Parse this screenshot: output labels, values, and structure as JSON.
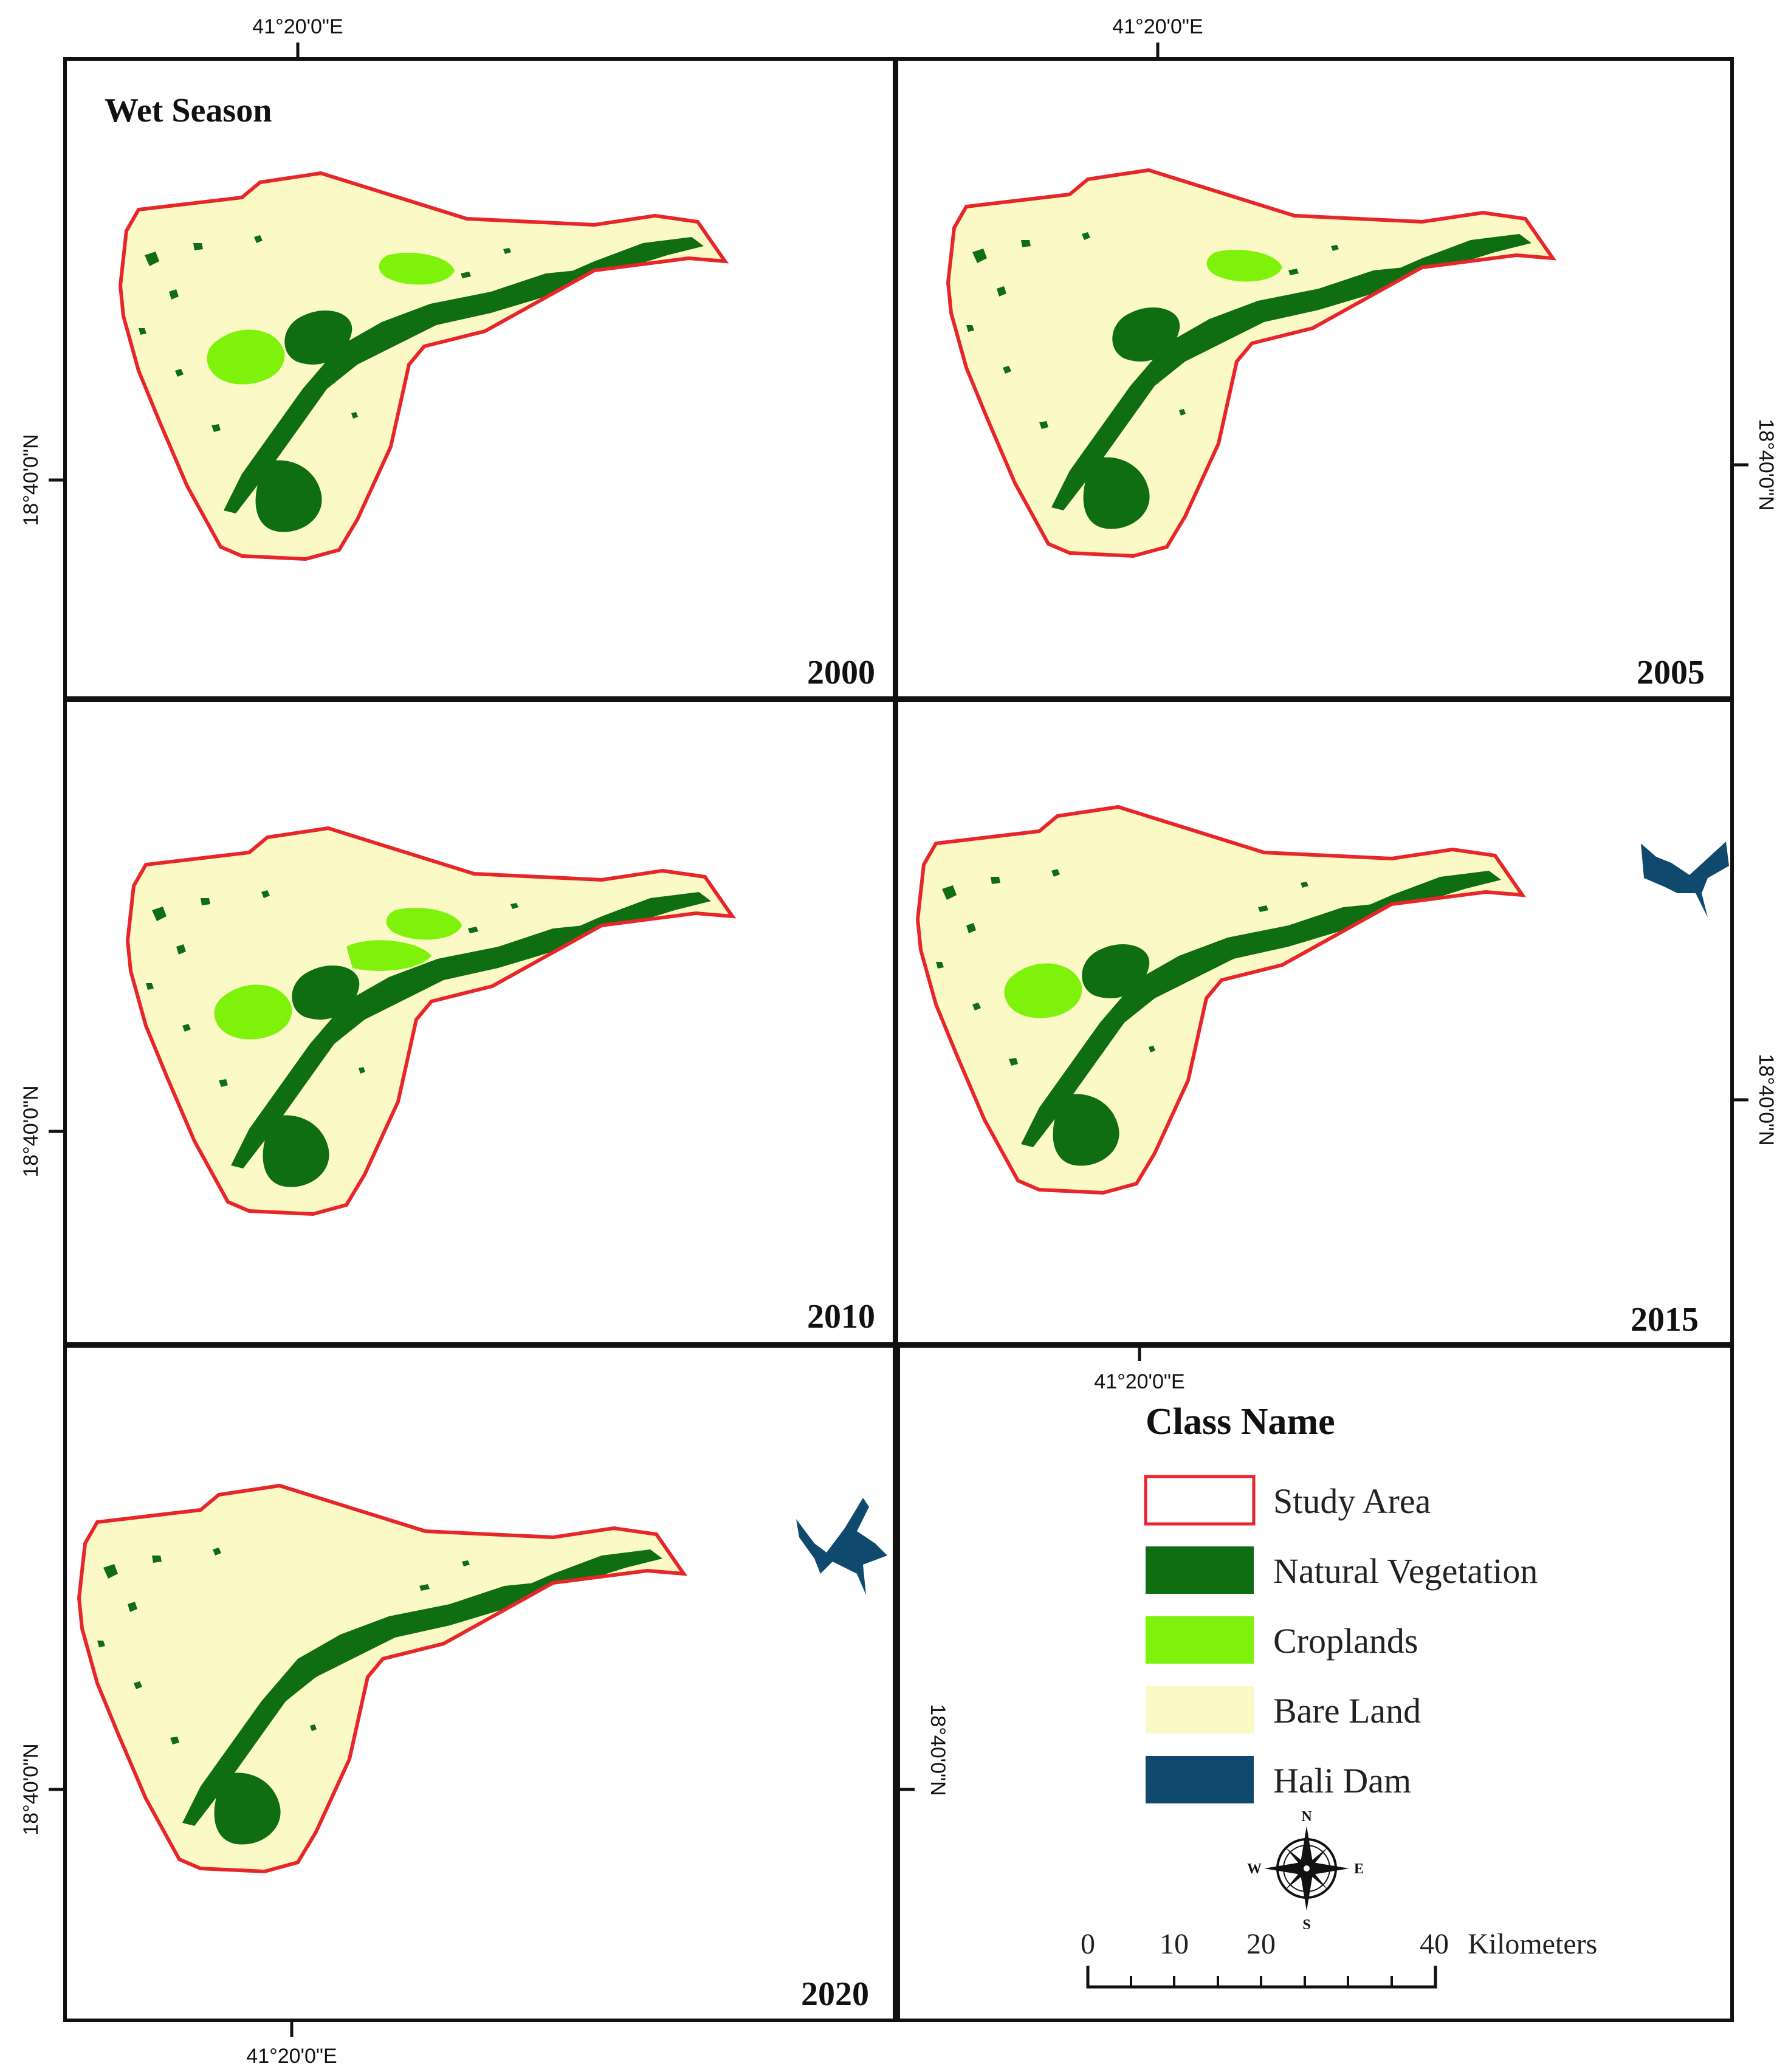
{
  "figure": {
    "season_label": "Wet Season"
  },
  "panels": [
    {
      "year": "2000",
      "lon_label": "41°20'0\"E",
      "lat_label": "18°40'0\"N",
      "dam_visible": false
    },
    {
      "year": "2005",
      "lon_label": "41°20'0\"E",
      "lat_label": "18°40'0\"N",
      "dam_visible": false
    },
    {
      "year": "2010",
      "lon_label": "",
      "lat_label": "18°40'0\"N",
      "dam_visible": false
    },
    {
      "year": "2015",
      "lon_label": "41°20'0\"E",
      "lat_label": "18°40'0\"N",
      "dam_visible": true
    },
    {
      "year": "2020",
      "lon_label": "41°20'0\"E",
      "lat_label": "18°40'0\"N",
      "dam_visible": true
    }
  ],
  "legend": {
    "title": "Class Name",
    "lat_label": "18°40'0\"N",
    "lon_label": "41°20'0\"E",
    "items": [
      {
        "label": "Study Area",
        "color": "#ffffff",
        "border": "#e8262a"
      },
      {
        "label": "Natural Vegetation",
        "color": "#0f6e12",
        "border": "#0f6e12"
      },
      {
        "label": "Croplands",
        "color": "#7ef20a",
        "border": "#7ef20a"
      },
      {
        "label": "Bare Land",
        "color": "#fbf9c6",
        "border": "#fbf9c6"
      },
      {
        "label": "Hali Dam",
        "color": "#0f4a6e",
        "border": "#0f4a6e"
      }
    ]
  },
  "north_arrow": {
    "n": "N",
    "s": "S",
    "e": "E",
    "w": "W"
  },
  "scale_bar": {
    "ticks": [
      "0",
      "10",
      "20",
      "40"
    ],
    "unit": "Kilometers"
  },
  "colors": {
    "study_boundary": "#e8262a",
    "natural_vegetation": "#0f6e12",
    "croplands": "#7ef20a",
    "bare_land": "#fbf9c6",
    "hali_dam": "#0f4a6e"
  }
}
